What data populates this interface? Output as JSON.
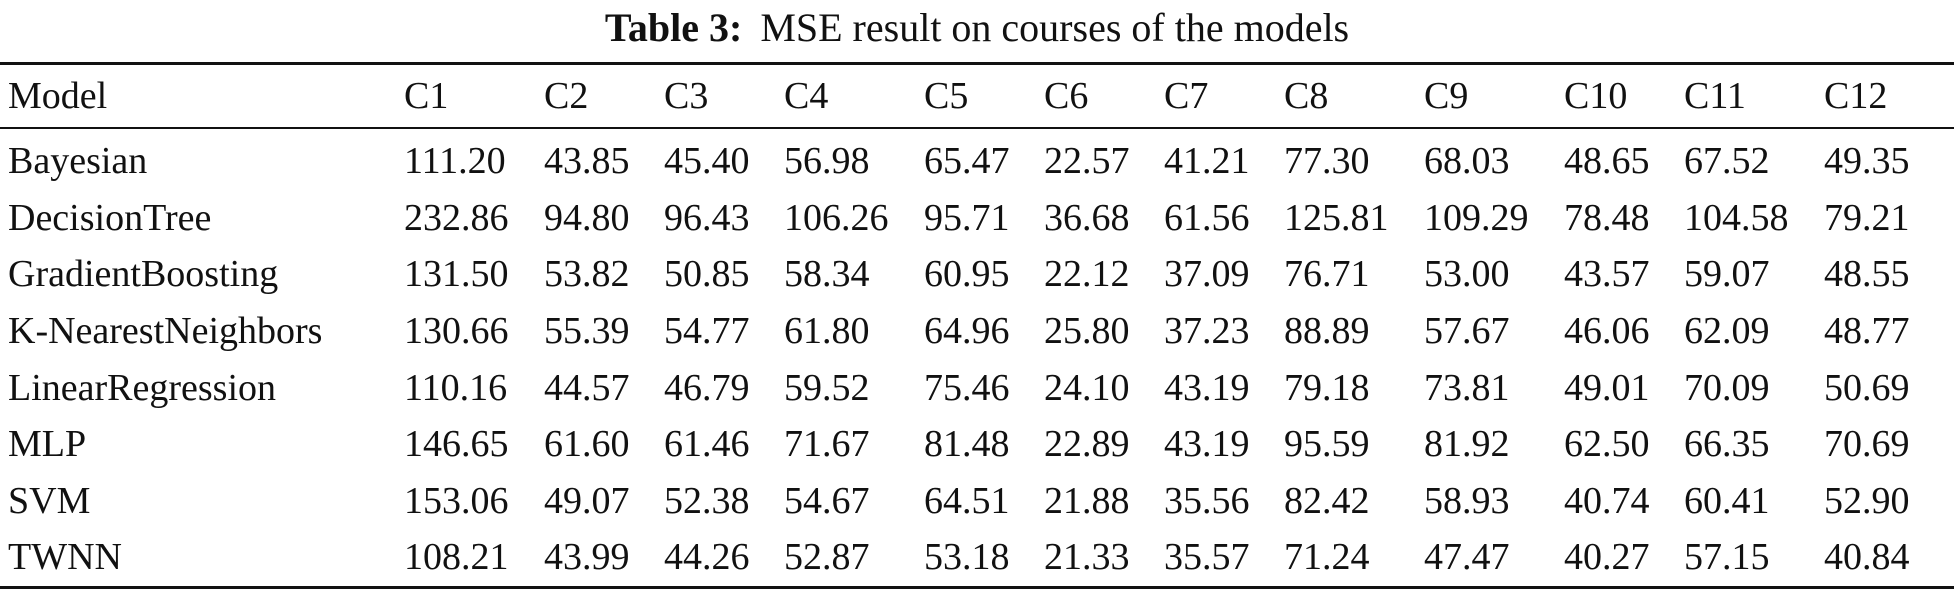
{
  "caption": {
    "label": "Table 3:",
    "text": "MSE result on courses of the models"
  },
  "table": {
    "columns": [
      "Model",
      "C1",
      "C2",
      "C3",
      "C4",
      "C5",
      "C6",
      "C7",
      "C8",
      "C9",
      "C10",
      "C11",
      "C12"
    ],
    "rows": [
      [
        "Bayesian",
        "111.20",
        "43.85",
        "45.40",
        "56.98",
        "65.47",
        "22.57",
        "41.21",
        "77.30",
        "68.03",
        "48.65",
        "67.52",
        "49.35"
      ],
      [
        "DecisionTree",
        "232.86",
        "94.80",
        "96.43",
        "106.26",
        "95.71",
        "36.68",
        "61.56",
        "125.81",
        "109.29",
        "78.48",
        "104.58",
        "79.21"
      ],
      [
        "GradientBoosting",
        "131.50",
        "53.82",
        "50.85",
        "58.34",
        "60.95",
        "22.12",
        "37.09",
        "76.71",
        "53.00",
        "43.57",
        "59.07",
        "48.55"
      ],
      [
        "K-NearestNeighbors",
        "130.66",
        "55.39",
        "54.77",
        "61.80",
        "64.96",
        "25.80",
        "37.23",
        "88.89",
        "57.67",
        "46.06",
        "62.09",
        "48.77"
      ],
      [
        "LinearRegression",
        "110.16",
        "44.57",
        "46.79",
        "59.52",
        "75.46",
        "24.10",
        "43.19",
        "79.18",
        "73.81",
        "49.01",
        "70.09",
        "50.69"
      ],
      [
        "MLP",
        "146.65",
        "61.60",
        "61.46",
        "71.67",
        "81.48",
        "22.89",
        "43.19",
        "95.59",
        "81.92",
        "62.50",
        "66.35",
        "70.69"
      ],
      [
        "SVM",
        "153.06",
        "49.07",
        "52.38",
        "54.67",
        "64.51",
        "21.88",
        "35.56",
        "82.42",
        "58.93",
        "40.74",
        "60.41",
        "52.90"
      ],
      [
        "TWNN",
        "108.21",
        "43.99",
        "44.26",
        "52.87",
        "53.18",
        "21.33",
        "35.57",
        "71.24",
        "47.47",
        "40.27",
        "57.15",
        "40.84"
      ]
    ]
  }
}
